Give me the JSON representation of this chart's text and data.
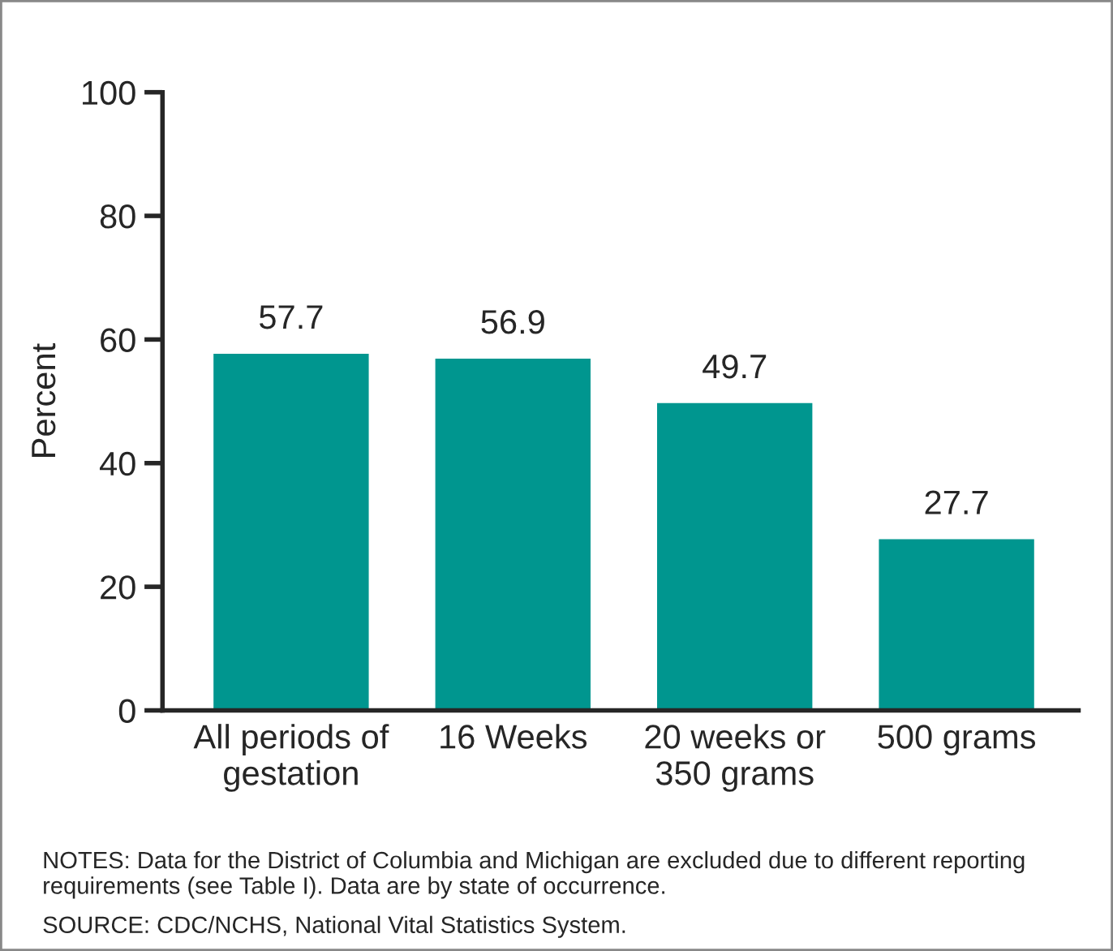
{
  "chart_data": {
    "type": "bar",
    "ylabel": "Percent",
    "categories": [
      "All periods of\ngestation",
      "16 Weeks",
      "20 weeks or\n350 grams",
      "500 grams"
    ],
    "values": [
      57.7,
      56.9,
      49.7,
      27.7
    ],
    "color": "#00968f",
    "ylim": [
      0,
      100
    ],
    "yticks": [
      0,
      20,
      40,
      60,
      80,
      100
    ],
    "grid": false,
    "data_labels": true,
    "annotations": [
      "NOTES: Data for the District of Columbia and Michigan are excluded due to different reporting requirements (see Table I). Data are by state of occurrence.",
      "SOURCE: CDC/NCHS, National Vital Statistics System."
    ]
  }
}
